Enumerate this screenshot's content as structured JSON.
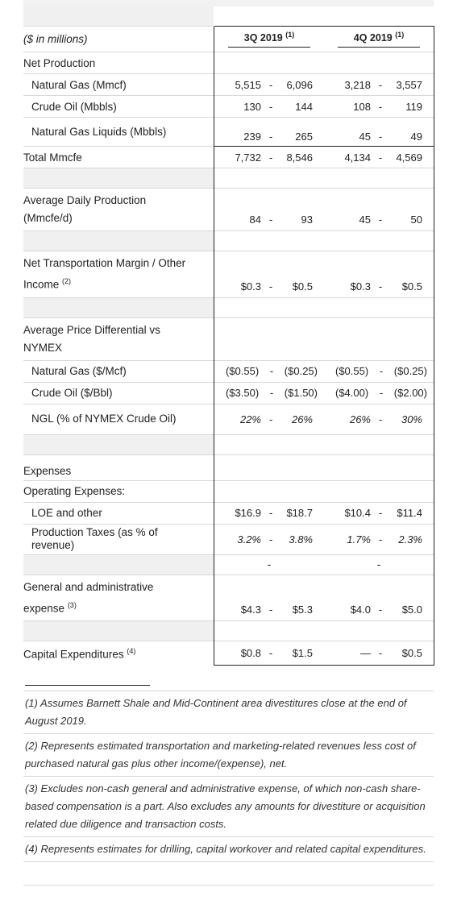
{
  "header": {
    "units": "($ in millions)",
    "col1": "3Q 2019",
    "col1_note": "(1)",
    "col2": "4Q 2019",
    "col2_note": "(1)"
  },
  "sep": "-",
  "rows": {
    "net_production": "Net Production",
    "natural_gas": {
      "label": "Natural Gas (Mmcf)",
      "q3": [
        "5,515",
        "6,096"
      ],
      "q4": [
        "3,218",
        "3,557"
      ]
    },
    "crude_oil": {
      "label": "Crude Oil (Mbbls)",
      "q3": [
        "130",
        "144"
      ],
      "q4": [
        "108",
        "119"
      ]
    },
    "ngl": {
      "label": "Natural Gas Liquids (Mbbls)",
      "q3": [
        "239",
        "265"
      ],
      "q4": [
        "45",
        "49"
      ]
    },
    "total_mmcfe": {
      "label": "Total Mmcfe",
      "q3": [
        "7,732",
        "8,546"
      ],
      "q4": [
        "4,134",
        "4,569"
      ]
    },
    "avg_daily": {
      "label": "Average Daily Production (Mmcfe/d)",
      "q3": [
        "84",
        "93"
      ],
      "q4": [
        "45",
        "50"
      ]
    },
    "net_transport": {
      "label": "Net Transportation Margin / Other Income",
      "note": "(2)",
      "q3": [
        "$0.3",
        "$0.5"
      ],
      "q4": [
        "$0.3",
        "$0.5"
      ]
    },
    "avg_price_diff": "Average Price Differential vs NYMEX",
    "ng_diff": {
      "label": "Natural Gas ($/Mcf)",
      "q3": [
        "($0.55)",
        "($0.25)"
      ],
      "q4": [
        "($0.55)",
        "($0.25)"
      ]
    },
    "oil_diff": {
      "label": "Crude Oil ($/Bbl)",
      "q3": [
        "($3.50)",
        "($1.50)"
      ],
      "q4": [
        "($4.00)",
        "($2.00)"
      ]
    },
    "ngl_diff": {
      "label": "NGL (% of NYMEX Crude Oil)",
      "q3": [
        "22%",
        "26%"
      ],
      "q4": [
        "26%",
        "30%"
      ]
    },
    "expenses": "Expenses",
    "operating_expenses": "Operating Expenses:",
    "loe": {
      "label": "LOE and other",
      "q3": [
        "$16.9",
        "$18.7"
      ],
      "q4": [
        "$10.4",
        "$11.4"
      ]
    },
    "prod_taxes": {
      "label": "Production Taxes (as % of revenue)",
      "q3": [
        "3.2%",
        "3.8%"
      ],
      "q4": [
        "1.7%",
        "2.3%"
      ]
    },
    "ga": {
      "label": "General and administrative expense",
      "note": "(3)",
      "q3": [
        "$4.3",
        "$5.3"
      ],
      "q4": [
        "$4.0",
        "$5.0"
      ]
    },
    "capex": {
      "label": "Capital Expenditures",
      "note": "(4)",
      "q3": [
        "$0.8",
        "$1.5"
      ],
      "q4": [
        "—",
        "$0.5"
      ]
    }
  },
  "footnotes": {
    "f1": "(1) Assumes Barnett Shale and Mid-Continent area divestitures close at the end of August 2019.",
    "f2": "(2) Represents estimated transportation and marketing-related revenues less cost of purchased natural gas plus other income/(expense), net.",
    "f3": "(3) Excludes non-cash general and administrative expense, of which non-cash share-based compensation is a part. Also excludes any amounts for divestiture or acquisition related due diligence and transaction costs.",
    "f4": "(4) Represents estimates for drilling, capital workover and related capital expenditures."
  }
}
